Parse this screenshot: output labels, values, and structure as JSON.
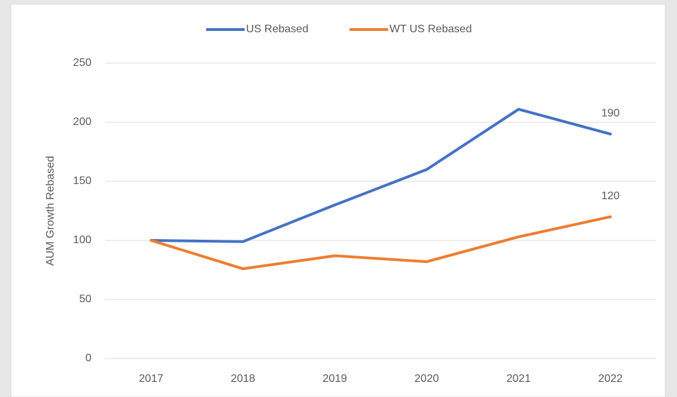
{
  "chart_data": {
    "type": "line",
    "y_label": "AUM Growth Rebased",
    "categories": [
      "2017",
      "2018",
      "2019",
      "2020",
      "2021",
      "2022"
    ],
    "series": [
      {
        "name": "US Rebased",
        "color": "#4472c4",
        "values": [
          100,
          99,
          130,
          160,
          211,
          190
        ]
      },
      {
        "name": "WT US Rebased",
        "color": "#ed7d31",
        "values": [
          100,
          76,
          87,
          82,
          103,
          120
        ]
      }
    ],
    "ylim": [
      0,
      250
    ],
    "yticks": [
      0,
      50,
      100,
      150,
      200,
      250
    ],
    "grid": true,
    "legend": "top"
  }
}
